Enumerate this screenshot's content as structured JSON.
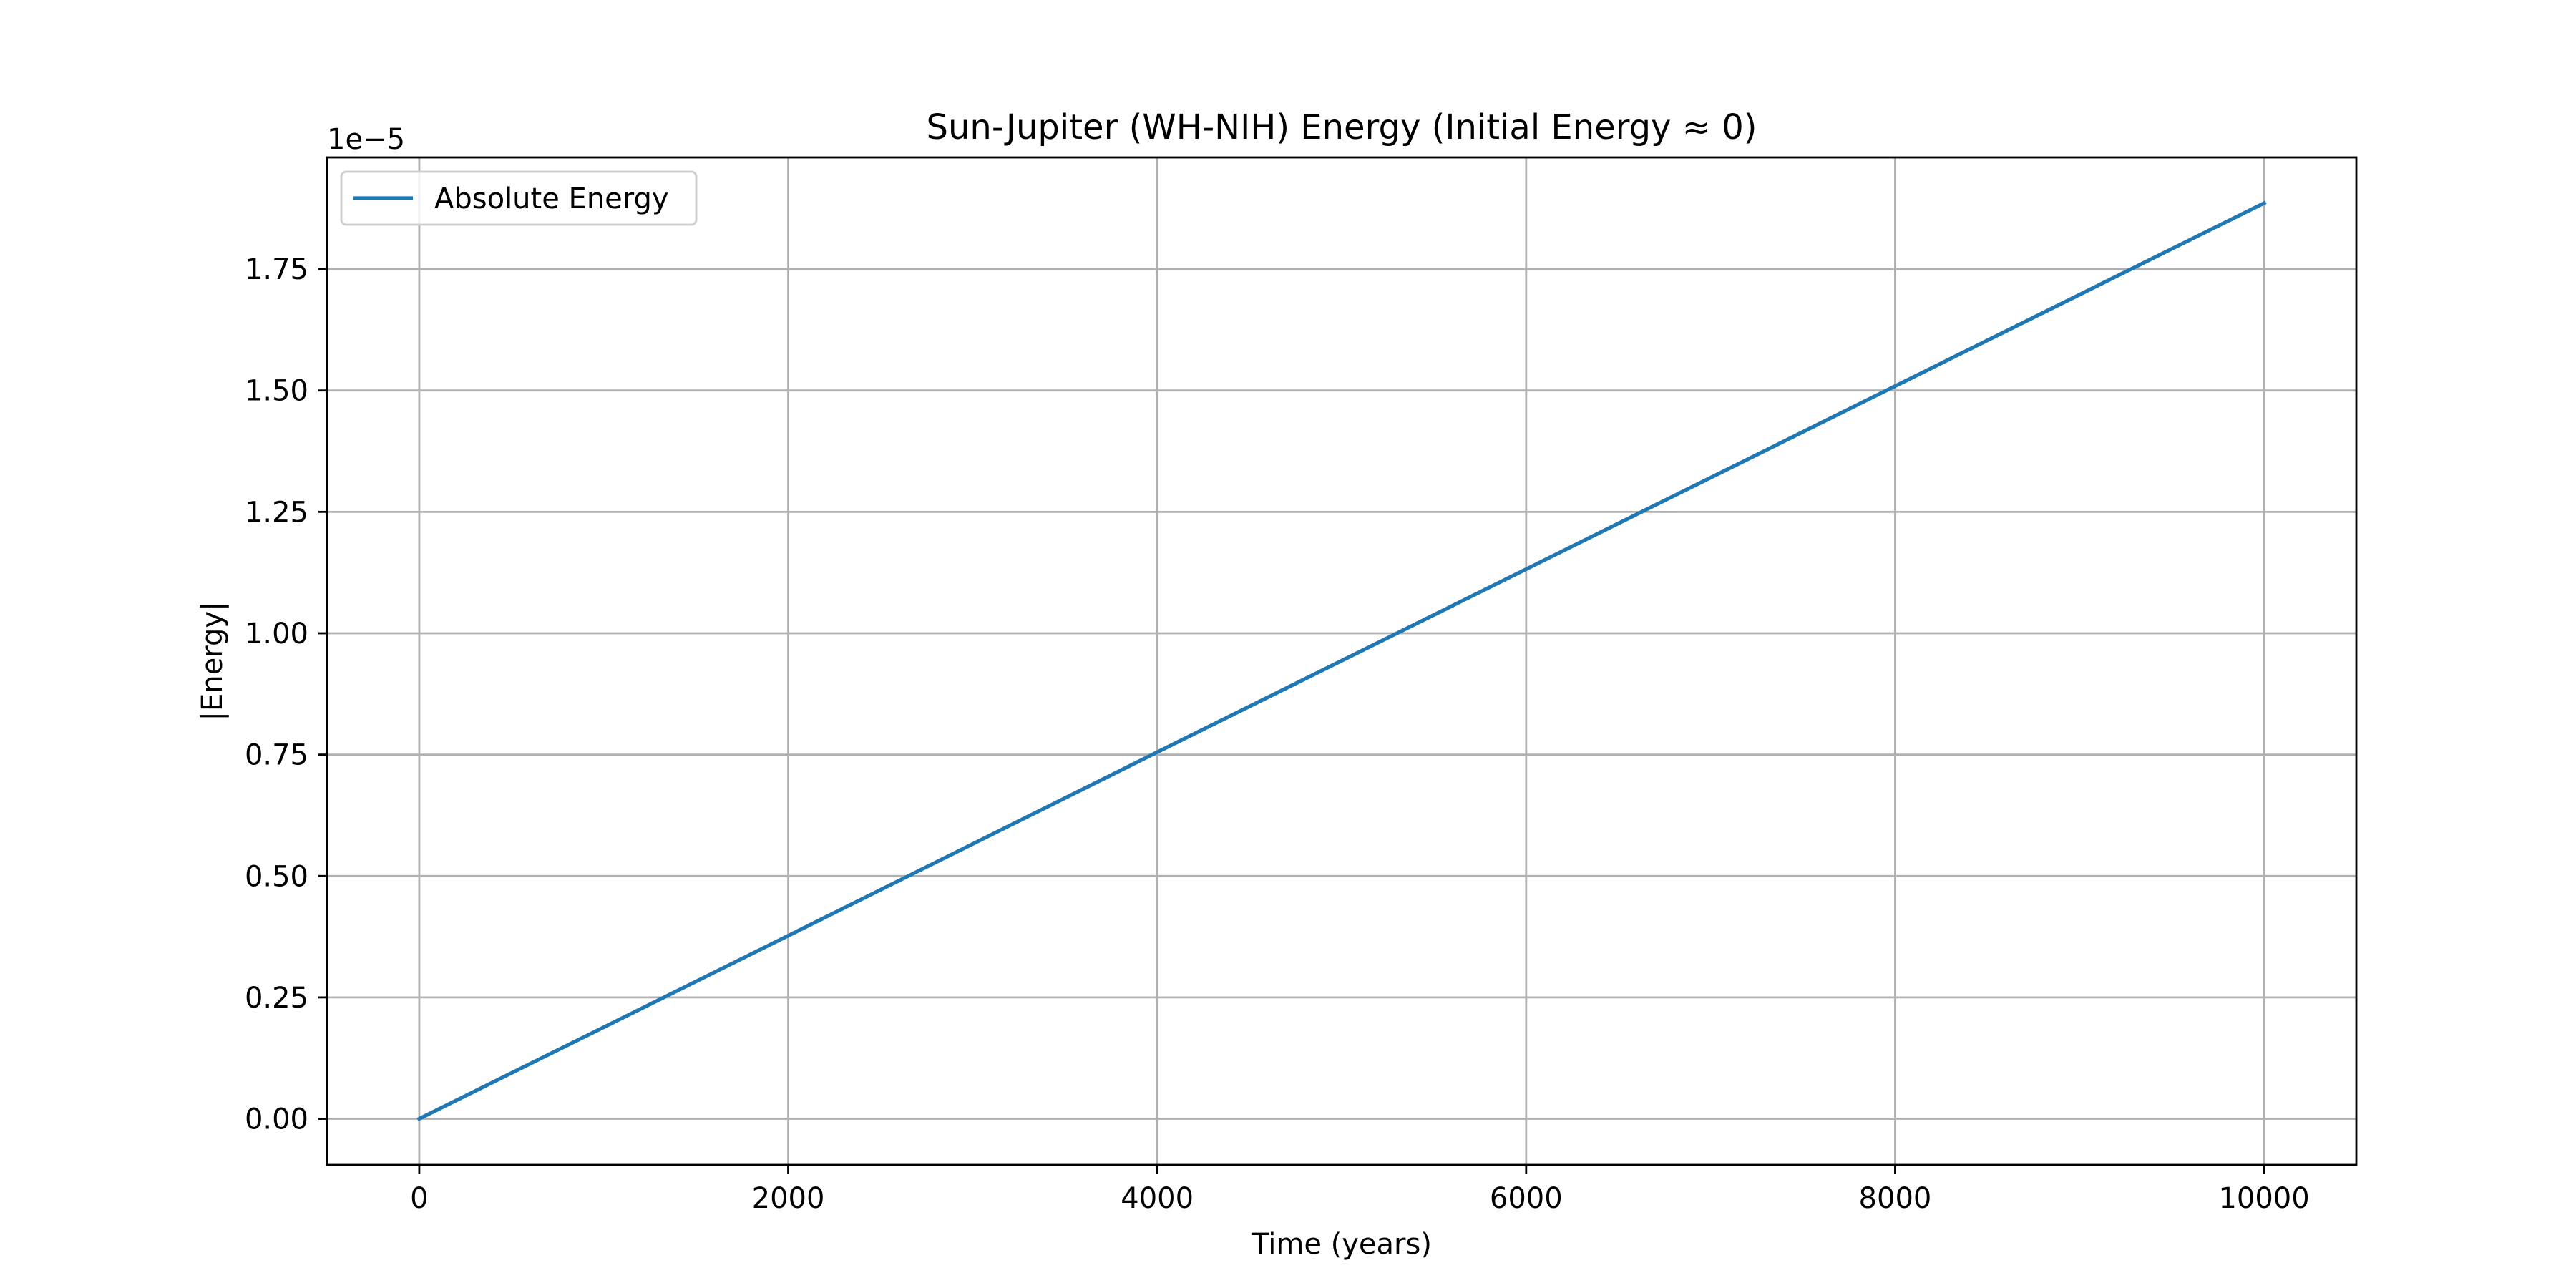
{
  "chart_data": {
    "type": "line",
    "title": "Sun-Jupiter (WH-NIH) Energy (Initial Energy ≈ 0)",
    "xlabel": "Time (years)",
    "ylabel": "|Energy|",
    "y_offset_label": "1e−5",
    "y_scale_factor": 1e-05,
    "xlim": [
      -500,
      10500
    ],
    "ylim": [
      -0.095,
      1.98
    ],
    "x_ticks": [
      0,
      2000,
      4000,
      6000,
      8000,
      10000
    ],
    "x_tick_labels": [
      "0",
      "2000",
      "4000",
      "6000",
      "8000",
      "10000"
    ],
    "y_ticks": [
      0,
      0.25,
      0.5,
      0.75,
      1.0,
      1.25,
      1.5,
      1.75
    ],
    "y_tick_labels": [
      "0.00",
      "0.25",
      "0.50",
      "0.75",
      "1.00",
      "1.25",
      "1.50",
      "1.75"
    ],
    "grid": true,
    "legend_position": "upper-left",
    "series": [
      {
        "name": "Absolute Energy",
        "color": "#1f77b4",
        "x": [
          0,
          2000,
          4000,
          6000,
          8000,
          10000
        ],
        "y": [
          0.0,
          0.377,
          0.755,
          1.132,
          1.509,
          1.886
        ]
      }
    ]
  }
}
